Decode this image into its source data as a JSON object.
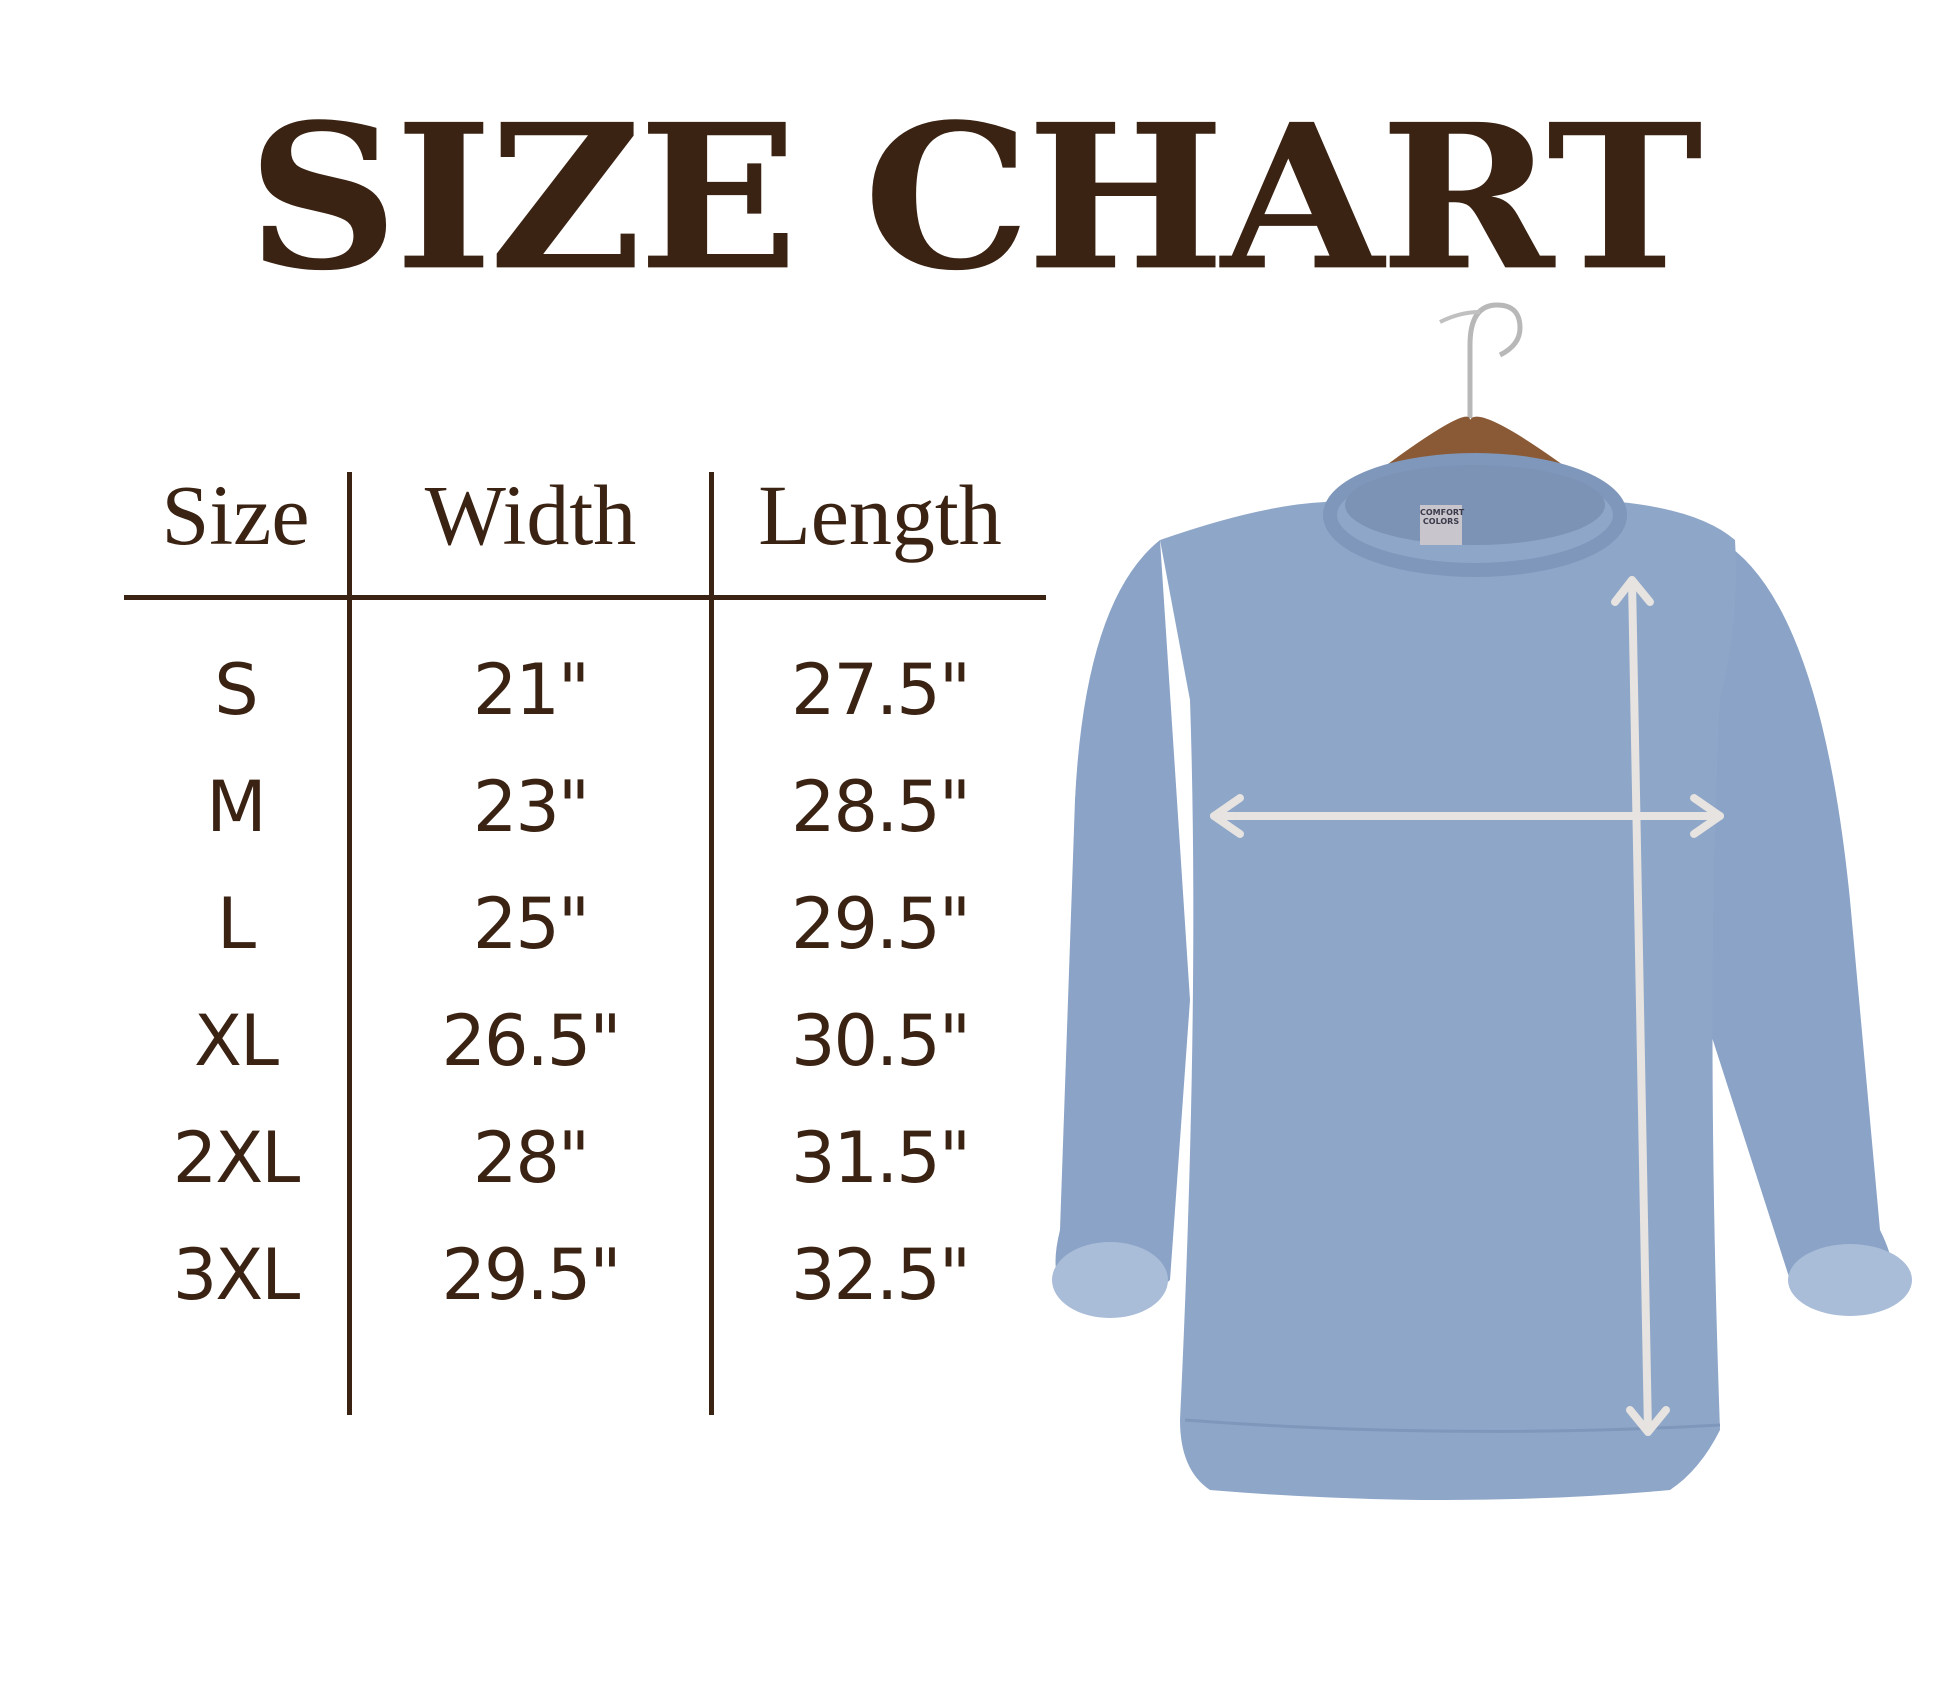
{
  "title": "SIZE CHART",
  "table": {
    "headers": [
      "Size",
      "Width",
      "Length"
    ],
    "rows": [
      [
        "S",
        "21\"",
        "27.5\""
      ],
      [
        "M",
        "23\"",
        "28.5\""
      ],
      [
        "L",
        "25\"",
        "29.5\""
      ],
      [
        "XL",
        "26.5\"",
        "30.5\""
      ],
      [
        "2XL",
        "28\"",
        "31.5\""
      ],
      [
        "3XL",
        "29.5\"",
        "32.5\""
      ]
    ]
  },
  "colors": {
    "text": "#3b2314",
    "sweater": "#8ea6c8",
    "arrows": "#e6e3e0",
    "hanger": "#8a5a36"
  },
  "image": {
    "subject": "blue crewneck sweatshirt on wooden hanger",
    "label_text": "COMFORT COLORS"
  }
}
